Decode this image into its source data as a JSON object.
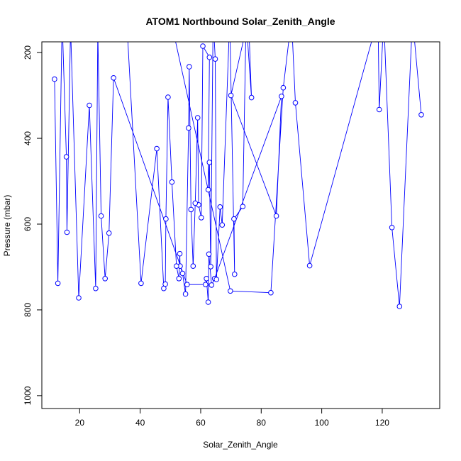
{
  "chart_data": {
    "type": "line",
    "title": "ATOM1 Northbound Solar_Zenith_Angle",
    "xlabel": "Solar_Zenith_Angle",
    "ylabel": "Pressure (mbar)",
    "xlim": [
      7.5,
      139
    ],
    "ylim": [
      1030,
      175
    ],
    "y_reversed": true,
    "x_ticks": [
      20,
      40,
      60,
      80,
      100,
      120
    ],
    "y_ticks": [
      200,
      400,
      600,
      800,
      1000
    ],
    "grid": false,
    "marker": "open-circle",
    "colors": {
      "series": "#0000ff",
      "axis": "#000000"
    },
    "series": [
      {
        "points": [
          [
            11.7,
            262
          ],
          [
            12.8,
            738
          ],
          [
            14.2,
            120
          ],
          [
            15.6,
            443
          ],
          [
            15.8,
            619
          ],
          [
            17.0,
            140
          ],
          [
            19.7,
            772
          ],
          [
            23.2,
            323
          ],
          [
            25.3,
            750
          ],
          [
            26.0,
            150
          ],
          [
            27.1,
            581
          ],
          [
            28.4,
            727
          ],
          [
            29.7,
            621
          ],
          [
            31.2,
            259
          ],
          [
            55.5,
            741
          ],
          [
            61.6,
            741
          ],
          [
            61.9,
            727
          ],
          [
            62.5,
            782
          ],
          [
            62.7,
            670
          ],
          [
            63.6,
            742
          ],
          [
            64.6,
            727
          ],
          [
            86.7,
            302
          ],
          [
            85.0,
            581
          ],
          [
            70.0,
            300
          ],
          [
            75.8,
            120
          ],
          [
            76.8,
            305
          ],
          [
            75.0,
            120
          ],
          [
            73.9,
            559
          ],
          [
            71.0,
            588
          ],
          [
            71.2,
            717
          ],
          [
            69.6,
            120
          ],
          [
            67.1,
            602
          ],
          [
            66.4,
            560
          ],
          [
            65.2,
            729
          ],
          [
            64.8,
            215
          ],
          [
            64.1,
            120
          ],
          [
            63.3,
            699
          ],
          [
            62.9,
            456
          ],
          [
            62.5,
            520
          ],
          [
            62.9,
            211
          ],
          [
            60.7,
            185
          ],
          [
            60.2,
            585
          ],
          [
            59.3,
            555
          ],
          [
            59.0,
            352
          ],
          [
            58.2,
            551
          ],
          [
            57.5,
            698
          ],
          [
            56.8,
            566
          ],
          [
            56.2,
            233
          ],
          [
            56.0,
            376
          ],
          [
            55.0,
            763
          ],
          [
            54.0,
            715
          ],
          [
            53.2,
            698
          ],
          [
            53.1,
            669
          ],
          [
            52.8,
            727
          ],
          [
            52.0,
            698
          ],
          [
            50.5,
            502
          ],
          [
            49.2,
            304
          ],
          [
            48.5,
            588
          ],
          [
            48.3,
            740
          ],
          [
            47.8,
            750
          ],
          [
            45.5,
            424
          ],
          [
            40.3,
            738
          ],
          [
            35.5,
            120
          ],
          [
            50.0,
            120
          ],
          [
            69.8,
            756
          ],
          [
            83.2,
            760
          ],
          [
            87.3,
            282
          ],
          [
            90.0,
            120
          ],
          [
            91.3,
            317
          ],
          [
            96.0,
            697
          ],
          [
            118.6,
            120
          ],
          [
            119.0,
            333
          ],
          [
            120.5,
            120
          ],
          [
            123.2,
            608
          ],
          [
            125.7,
            792
          ],
          [
            130.0,
            120
          ],
          [
            132.9,
            345
          ]
        ]
      }
    ]
  }
}
